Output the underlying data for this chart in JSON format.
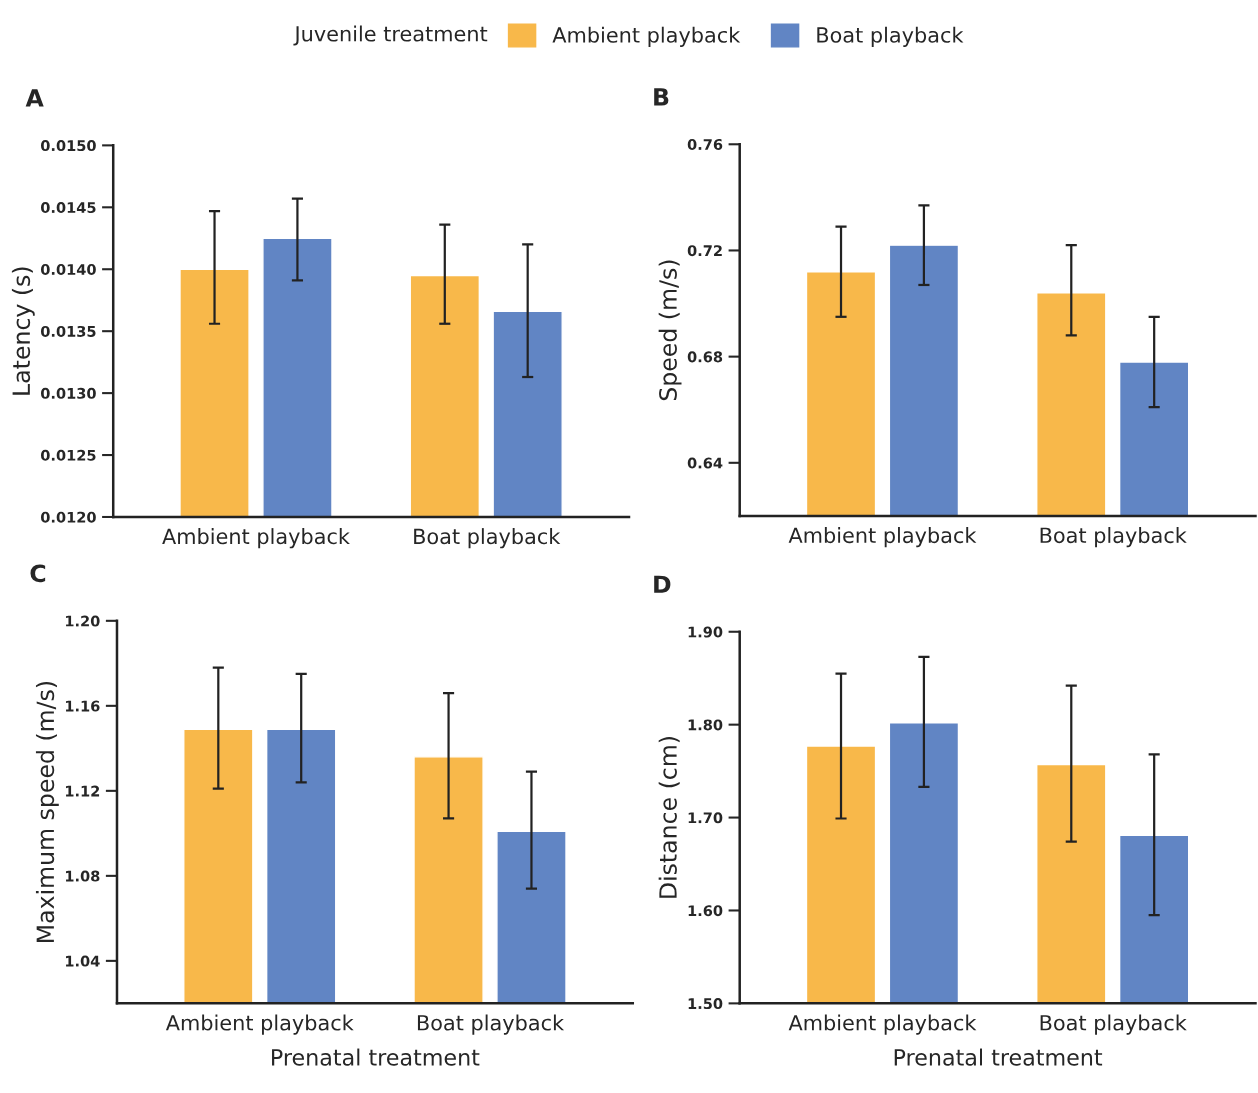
{
  "chart_data": [
    {
      "type": "bar",
      "title": "A",
      "ylabel": "Latency (s)",
      "categories": [
        "Ambient playback",
        "Boat playback"
      ],
      "legend": "top",
      "legend_title": "Juvenile treatment",
      "ylim": [
        0.012,
        0.015
      ],
      "yticks": [
        {
          "value": 0.012,
          "label": "0.0120"
        },
        {
          "value": 0.0125,
          "label": "0.0125"
        },
        {
          "value": 0.013,
          "label": "0.0130"
        },
        {
          "value": 0.0135,
          "label": "0.0135"
        },
        {
          "value": 0.014,
          "label": "0.0140"
        },
        {
          "value": 0.0145,
          "label": "0.0145"
        },
        {
          "value": 0.015,
          "label": "0.0150"
        }
      ],
      "series": [
        {
          "name": "Ambient playback",
          "color": "#f8b84a",
          "values": [
            0.014,
            0.01395
          ],
          "errors": [
            [
              0.01356,
              0.01447
            ],
            [
              0.01356,
              0.01436
            ]
          ]
        },
        {
          "name": "Boat playback",
          "color": "#6185c4",
          "values": [
            0.01425,
            0.01366
          ],
          "errors": [
            [
              0.01391,
              0.01457
            ],
            [
              0.01313,
              0.0142
            ]
          ]
        }
      ]
    },
    {
      "type": "bar",
      "title": "B",
      "ylabel": "Speed (m/s)",
      "categories": [
        "Ambient playback",
        "Boat playback"
      ],
      "ylim": [
        0.62,
        0.76
      ],
      "yticks": [
        0.64,
        0.68,
        0.72,
        0.76
      ],
      "series": [
        {
          "color": "#f8b84a",
          "values": [
            0.712,
            0.704
          ],
          "errors": [
            [
              0.695,
              0.729
            ],
            [
              0.688,
              0.722
            ]
          ]
        },
        {
          "color": "#6185c4",
          "values": [
            0.722,
            0.678
          ],
          "errors": [
            [
              0.707,
              0.737
            ],
            [
              0.661,
              0.695
            ]
          ]
        }
      ]
    },
    {
      "type": "bar",
      "title": "C",
      "ylabel": "Maximum speed (m/s)",
      "xlabel": "Prenatal treatment",
      "categories": [
        "Ambient playback",
        "Boat playback"
      ],
      "ylim": [
        1.02,
        1.2
      ],
      "yticks": [
        1.04,
        1.08,
        1.12,
        1.16,
        {
          "value": 1.2,
          "label": "1.20"
        }
      ],
      "series": [
        {
          "color": "#f8b84a",
          "values": [
            1.149,
            1.136
          ],
          "errors": [
            [
              1.121,
              1.178
            ],
            [
              1.107,
              1.166
            ]
          ]
        },
        {
          "color": "#6185c4",
          "values": [
            1.149,
            1.101
          ],
          "errors": [
            [
              1.124,
              1.175
            ],
            [
              1.074,
              1.129
            ]
          ]
        }
      ]
    },
    {
      "type": "bar",
      "title": "D",
      "ylabel": "Distance (cm)",
      "xlabel": "Prenatal treatment",
      "categories": [
        "Ambient playback",
        "Boat playback"
      ],
      "ylim": [
        1.5,
        1.9
      ],
      "yticks": [
        {
          "value": 1.5,
          "label": "1.50"
        },
        {
          "value": 1.6,
          "label": "1.60"
        },
        {
          "value": 1.7,
          "label": "1.70"
        },
        {
          "value": 1.8,
          "label": "1.80"
        },
        {
          "value": 1.9,
          "label": "1.90"
        }
      ],
      "series": [
        {
          "color": "#f8b84a",
          "values": [
            1.777,
            1.757
          ],
          "errors": [
            [
              1.699,
              1.855
            ],
            [
              1.674,
              1.842
            ]
          ]
        },
        {
          "color": "#6185c4",
          "values": [
            1.802,
            1.681
          ],
          "errors": [
            [
              1.733,
              1.873
            ],
            [
              1.595,
              1.768
            ]
          ]
        }
      ]
    }
  ]
}
